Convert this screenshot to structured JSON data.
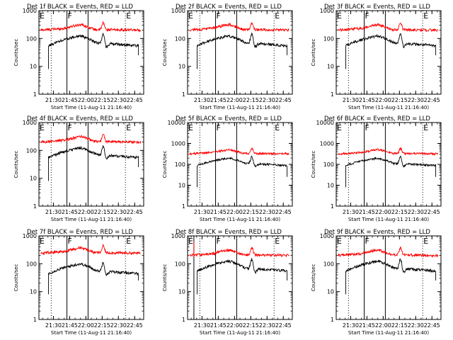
{
  "figure": {
    "title_template": "Det {n}f BLACK = Events, RED = LLD",
    "xlabel": "Start Time (11-Aug-11 21:16:40)",
    "ylabel": "Counts/sec"
  },
  "chart_data": [
    {
      "type": "line",
      "title": "Det 1f BLACK = Events, RED = LLD",
      "xlabel": "Start Time (11-Aug-11 21:16:40)",
      "ylabel": "Counts/sec",
      "y_scale": "log",
      "ylim": [
        1,
        1000
      ],
      "xlim": [
        "21:16:40",
        "22:53:20"
      ],
      "x_ticks": [
        "21:30",
        "21:45",
        "22:00",
        "22:15",
        "22:30",
        "22:45"
      ],
      "y_ticks": [
        "1",
        "10",
        "100",
        "1000"
      ],
      "markers": [
        {
          "label": "E",
          "x": "21:16:40",
          "style": "dotted"
        },
        {
          "label": "",
          "x": "21:28:00",
          "style": "dotted"
        },
        {
          "label": "F",
          "x": "21:42:30",
          "style": "solid"
        },
        {
          "label": "",
          "x": "22:02:00",
          "style": "solid"
        },
        {
          "label": "E",
          "x": "22:36:30",
          "style": "dotted"
        }
      ],
      "series": [
        {
          "color": "#ff0000",
          "level_scale": 1.0,
          "x_range": [
            "21:18:30",
            "22:50:30"
          ]
        },
        {
          "color": "#000000",
          "level_scale": 1.0,
          "x_range": [
            "21:25:30",
            "22:48:30"
          ]
        }
      ]
    },
    {
      "type": "line",
      "title": "Det 2f BLACK = Events, RED = LLD",
      "xlabel": "Start Time (11-Aug-11 21:16:40)",
      "ylabel": "Counts/sec",
      "y_scale": "log",
      "ylim": [
        1,
        1000
      ],
      "xlim": [
        "21:16:40",
        "22:53:20"
      ],
      "x_ticks": [
        "21:30",
        "21:45",
        "22:00",
        "22:15",
        "22:30",
        "22:45"
      ],
      "y_ticks": [
        "1",
        "10",
        "100",
        "1000"
      ],
      "markers": [
        {
          "label": "E",
          "x": "21:16:40",
          "style": "dotted"
        },
        {
          "label": "",
          "x": "21:28:00",
          "style": "dotted"
        },
        {
          "label": "F",
          "x": "21:42:30",
          "style": "solid"
        },
        {
          "label": "",
          "x": "22:02:00",
          "style": "solid"
        },
        {
          "label": "E",
          "x": "22:36:30",
          "style": "dotted"
        }
      ],
      "series": [
        {
          "color": "#ff0000",
          "level_scale": 1.0,
          "x_range": [
            "21:18:30",
            "22:50:30"
          ]
        },
        {
          "color": "#000000",
          "level_scale": 1.0,
          "x_range": [
            "21:25:30",
            "22:48:30"
          ]
        }
      ]
    },
    {
      "type": "line",
      "title": "Det 3f BLACK = Events, RED = LLD",
      "xlabel": "Start Time (11-Aug-11 21:16:40)",
      "ylabel": "Counts/sec",
      "y_scale": "log",
      "ylim": [
        1,
        1000
      ],
      "xlim": [
        "21:16:40",
        "22:53:20"
      ],
      "x_ticks": [
        "21:30",
        "21:45",
        "22:00",
        "22:15",
        "22:30",
        "22:45"
      ],
      "y_ticks": [
        "1",
        "10",
        "100",
        "1000"
      ],
      "markers": [
        {
          "label": "E",
          "x": "21:16:40",
          "style": "dotted"
        },
        {
          "label": "",
          "x": "21:28:00",
          "style": "dotted"
        },
        {
          "label": "F",
          "x": "21:42:30",
          "style": "solid"
        },
        {
          "label": "",
          "x": "22:02:00",
          "style": "solid"
        },
        {
          "label": "E",
          "x": "22:36:30",
          "style": "dotted"
        }
      ],
      "series": [
        {
          "color": "#ff0000",
          "level_scale": 1.0,
          "x_range": [
            "21:18:30",
            "22:50:30"
          ]
        },
        {
          "color": "#000000",
          "level_scale": 1.0,
          "x_range": [
            "21:25:30",
            "22:48:30"
          ]
        }
      ]
    },
    {
      "type": "line",
      "title": "Det 4f BLACK = Events, RED = LLD",
      "xlabel": "Start Time (11-Aug-11 21:16:40)",
      "ylabel": "Counts/sec",
      "y_scale": "log",
      "ylim": [
        1,
        1000
      ],
      "xlim": [
        "21:16:40",
        "22:53:20"
      ],
      "x_ticks": [
        "21:30",
        "21:45",
        "22:00",
        "22:15",
        "22:30",
        "22:45"
      ],
      "y_ticks": [
        "1",
        "10",
        "100",
        "1000"
      ],
      "markers": [
        {
          "label": "E",
          "x": "21:16:40",
          "style": "dotted"
        },
        {
          "label": "",
          "x": "21:28:00",
          "style": "dotted"
        },
        {
          "label": "F",
          "x": "21:42:30",
          "style": "solid"
        },
        {
          "label": "",
          "x": "22:02:00",
          "style": "solid"
        },
        {
          "label": "E",
          "x": "22:36:30",
          "style": "dotted"
        }
      ],
      "series": [
        {
          "color": "#ff0000",
          "level_scale": 1.0,
          "x_range": [
            "21:18:30",
            "22:50:30"
          ]
        },
        {
          "color": "#000000",
          "level_scale": 1.0,
          "x_range": [
            "21:25:30",
            "22:48:30"
          ]
        }
      ]
    },
    {
      "type": "line",
      "title": "Det 5f BLACK = Events, RED = LLD",
      "xlabel": "Start Time (11-Aug-11 21:16:40)",
      "ylabel": "Counts/sec",
      "y_scale": "log",
      "ylim": [
        1,
        10000
      ],
      "xlim": [
        "21:16:40",
        "22:53:20"
      ],
      "x_ticks": [
        "21:30",
        "21:45",
        "22:00",
        "22:15",
        "22:30",
        "22:45"
      ],
      "y_ticks": [
        "1",
        "10",
        "100",
        "1000",
        "10000"
      ],
      "markers": [
        {
          "label": "E",
          "x": "21:16:40",
          "style": "dotted"
        },
        {
          "label": "",
          "x": "21:28:00",
          "style": "dotted"
        },
        {
          "label": "F",
          "x": "21:42:30",
          "style": "solid"
        },
        {
          "label": "",
          "x": "22:02:00",
          "style": "solid"
        },
        {
          "label": "E",
          "x": "22:36:30",
          "style": "dotted"
        }
      ],
      "series": [
        {
          "color": "#ff0000",
          "level_scale": 1.6,
          "x_range": [
            "21:18:30",
            "22:50:30"
          ]
        },
        {
          "color": "#000000",
          "level_scale": 1.6,
          "x_range": [
            "21:25:30",
            "22:48:30"
          ]
        }
      ]
    },
    {
      "type": "line",
      "title": "Det 6f BLACK = Events, RED = LLD",
      "xlabel": "Start Time (11-Aug-11 21:16:40)",
      "ylabel": "Counts/sec",
      "y_scale": "log",
      "ylim": [
        1,
        10000
      ],
      "xlim": [
        "21:16:40",
        "22:53:20"
      ],
      "x_ticks": [
        "21:30",
        "21:45",
        "22:00",
        "22:15",
        "22:30",
        "22:45"
      ],
      "y_ticks": [
        "1",
        "10",
        "100",
        "1000",
        "10000"
      ],
      "markers": [
        {
          "label": "E",
          "x": "21:16:40",
          "style": "dotted"
        },
        {
          "label": "",
          "x": "21:28:00",
          "style": "dotted"
        },
        {
          "label": "F",
          "x": "21:42:30",
          "style": "solid"
        },
        {
          "label": "",
          "x": "22:02:00",
          "style": "solid"
        },
        {
          "label": "E",
          "x": "22:36:30",
          "style": "dotted"
        }
      ],
      "series": [
        {
          "color": "#ff0000",
          "level_scale": 1.6,
          "x_range": [
            "21:18:30",
            "22:50:30"
          ]
        },
        {
          "color": "#000000",
          "level_scale": 1.6,
          "x_range": [
            "21:25:30",
            "22:48:30"
          ]
        }
      ]
    },
    {
      "type": "line",
      "title": "Det 7f BLACK = Events, RED = LLD",
      "xlabel": "Start Time (11-Aug-11 21:16:40)",
      "ylabel": "Counts/sec",
      "y_scale": "log",
      "ylim": [
        1,
        1000
      ],
      "xlim": [
        "21:16:40",
        "22:53:20"
      ],
      "x_ticks": [
        "21:30",
        "21:45",
        "22:00",
        "22:15",
        "22:30",
        "22:45"
      ],
      "y_ticks": [
        "1",
        "10",
        "100",
        "1000"
      ],
      "markers": [
        {
          "label": "E",
          "x": "21:16:40",
          "style": "dotted"
        },
        {
          "label": "",
          "x": "21:28:00",
          "style": "dotted"
        },
        {
          "label": "F",
          "x": "21:42:30",
          "style": "solid"
        },
        {
          "label": "",
          "x": "22:02:00",
          "style": "solid"
        },
        {
          "label": "E",
          "x": "22:36:30",
          "style": "dotted"
        }
      ],
      "series": [
        {
          "color": "#ff0000",
          "level_scale": 1.2,
          "x_range": [
            "21:18:30",
            "22:50:30"
          ]
        },
        {
          "color": "#000000",
          "level_scale": 0.8,
          "x_range": [
            "21:25:30",
            "22:48:30"
          ]
        }
      ]
    },
    {
      "type": "line",
      "title": "Det 8f BLACK = Events, RED = LLD",
      "xlabel": "Start Time (11-Aug-11 21:16:40)",
      "ylabel": "Counts/sec",
      "y_scale": "log",
      "ylim": [
        1,
        1000
      ],
      "xlim": [
        "21:16:40",
        "22:53:20"
      ],
      "x_ticks": [
        "21:30",
        "21:45",
        "22:00",
        "22:15",
        "22:30",
        "22:45"
      ],
      "y_ticks": [
        "1",
        "10",
        "100",
        "1000"
      ],
      "markers": [
        {
          "label": "E",
          "x": "21:16:40",
          "style": "dotted"
        },
        {
          "label": "",
          "x": "21:22:30",
          "style": "solid"
        },
        {
          "label": "",
          "x": "21:28:00",
          "style": "dotted"
        },
        {
          "label": "F",
          "x": "21:42:30",
          "style": "solid"
        },
        {
          "label": "",
          "x": "22:02:00",
          "style": "solid"
        },
        {
          "label": "E",
          "x": "22:36:30",
          "style": "dotted"
        }
      ],
      "series": [
        {
          "color": "#ff0000",
          "level_scale": 1.0,
          "x_range": [
            "21:18:30",
            "22:50:30"
          ]
        },
        {
          "color": "#000000",
          "level_scale": 1.0,
          "x_range": [
            "21:25:30",
            "22:48:30"
          ]
        }
      ]
    },
    {
      "type": "line",
      "title": "Det 9f BLACK = Events, RED = LLD",
      "xlabel": "Start Time (11-Aug-11 21:16:40)",
      "ylabel": "Counts/sec",
      "y_scale": "log",
      "ylim": [
        1,
        1000
      ],
      "xlim": [
        "21:16:40",
        "22:53:20"
      ],
      "x_ticks": [
        "21:30",
        "21:45",
        "22:00",
        "22:15",
        "22:30",
        "22:45"
      ],
      "y_ticks": [
        "1",
        "10",
        "100",
        "1000"
      ],
      "markers": [
        {
          "label": "E",
          "x": "21:16:40",
          "style": "dotted"
        },
        {
          "label": "",
          "x": "21:28:00",
          "style": "dotted"
        },
        {
          "label": "F",
          "x": "21:42:30",
          "style": "solid"
        },
        {
          "label": "",
          "x": "22:02:00",
          "style": "solid"
        },
        {
          "label": "E",
          "x": "22:36:30",
          "style": "dotted"
        }
      ],
      "series": [
        {
          "color": "#ff0000",
          "level_scale": 1.0,
          "x_range": [
            "21:18:30",
            "22:50:30"
          ]
        },
        {
          "color": "#000000",
          "level_scale": 1.0,
          "x_range": [
            "21:25:30",
            "22:48:30"
          ]
        }
      ]
    }
  ]
}
